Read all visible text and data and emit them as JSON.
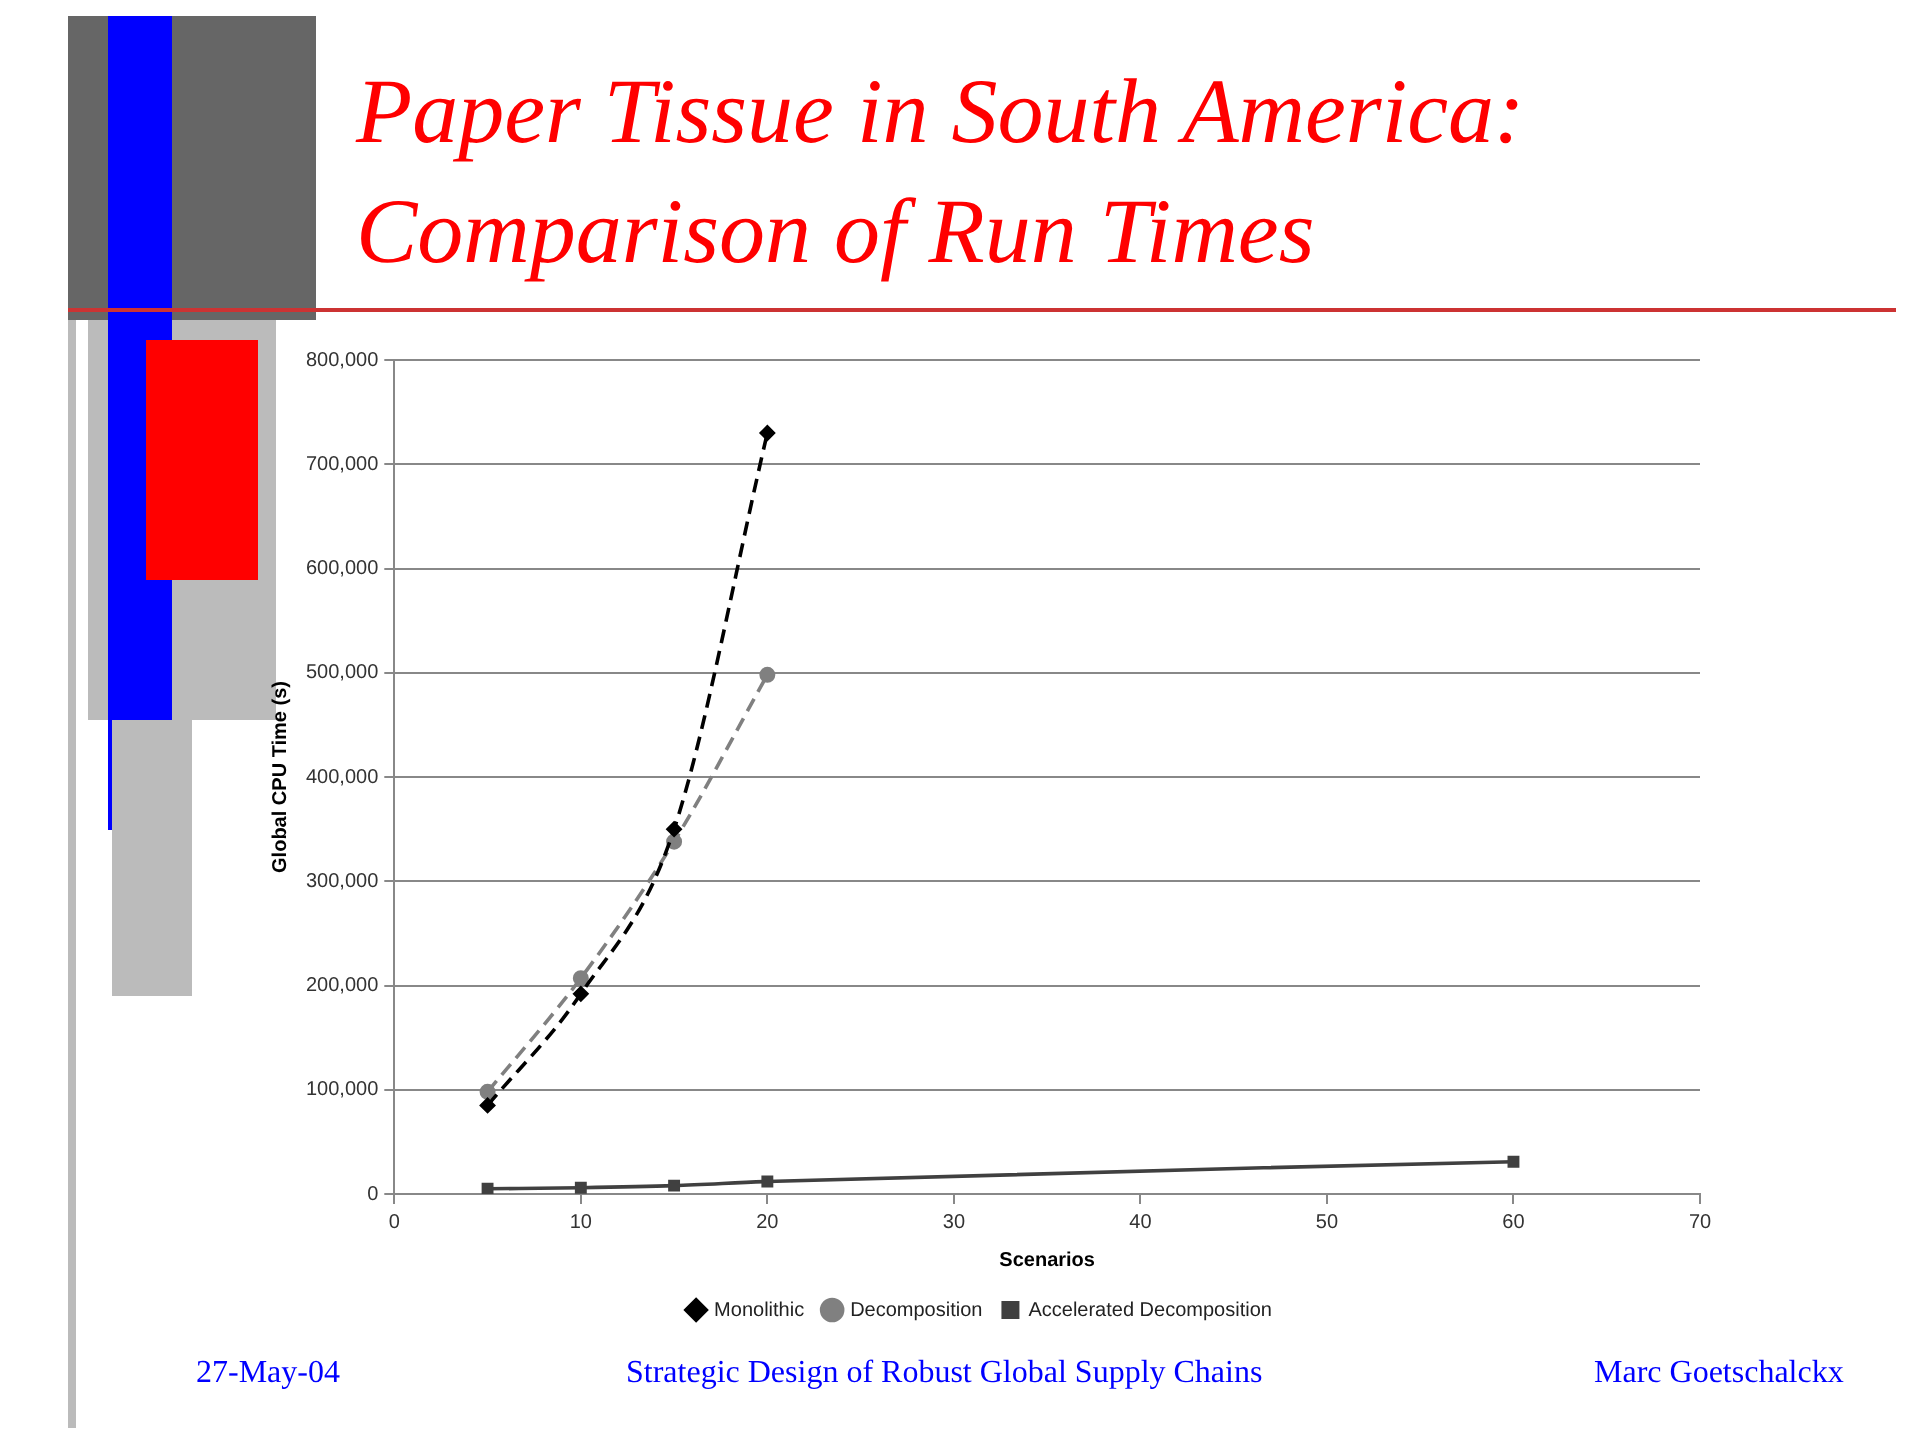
{
  "chart_data": {
    "type": "line",
    "title": "Paper Tissue in South America: Comparison of Run Times",
    "xlabel": "Scenarios",
    "ylabel": "Global CPU Time (s)",
    "series": [
      {
        "name": "Monolithic",
        "color": "#000000",
        "x": [
          5,
          10,
          15,
          20
        ],
        "values": [
          85000,
          192000,
          350000,
          730000
        ],
        "marker": "diamond",
        "line_style": "dashed"
      },
      {
        "name": "Decomposition",
        "color": "#808080",
        "x": [
          5,
          10,
          15,
          20
        ],
        "values": [
          98000,
          207000,
          338000,
          498000
        ],
        "marker": "circle",
        "line_style": "dashed"
      },
      {
        "name": "Accelerated Decomposition",
        "color": "#404040",
        "x": [
          5,
          10,
          15,
          20,
          60
        ],
        "values": [
          5000,
          6000,
          8000,
          12000,
          31000
        ],
        "marker": "square",
        "line_style": "solid"
      }
    ],
    "xlim": [
      0,
      70
    ],
    "xticks": [
      0,
      10,
      20,
      30,
      40,
      50,
      60,
      70
    ],
    "ylim": [
      0,
      800000
    ],
    "yticks": [
      {
        "value": 0,
        "label": "0"
      },
      {
        "value": 100000,
        "label": "100,000"
      },
      {
        "value": 200000,
        "label": "200,000"
      },
      {
        "value": 300000,
        "label": "300,000"
      },
      {
        "value": 400000,
        "label": "400,000"
      },
      {
        "value": 500000,
        "label": "500,000"
      },
      {
        "value": 600000,
        "label": "600,000"
      },
      {
        "value": 700000,
        "label": "700,000"
      },
      {
        "value": 800000,
        "label": "800,000"
      }
    ],
    "grid": "y",
    "legend": "bottom",
    "annotations": [
      "27-May-04",
      "Strategic Design of Robust Global Supply Chains",
      "Marc Goetschalckx"
    ]
  }
}
